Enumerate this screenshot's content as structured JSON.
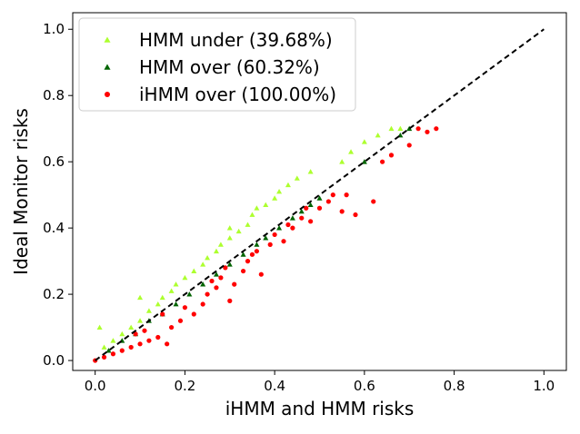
{
  "chart_data": {
    "type": "scatter",
    "xlabel": "iHMM and HMM risks",
    "ylabel": "Ideal Monitor risks",
    "xlim": [
      -0.05,
      1.05
    ],
    "ylim": [
      -0.03,
      1.05
    ],
    "xticks": [
      "0.0",
      "0.2",
      "0.4",
      "0.6",
      "0.8",
      "1.0"
    ],
    "yticks": [
      "0.0",
      "0.2",
      "0.4",
      "0.6",
      "0.8",
      "1.0"
    ],
    "legend_position": "top-left",
    "reference_line": {
      "style": "dashed",
      "color": "#000000",
      "from": [
        0,
        0
      ],
      "to": [
        1,
        1
      ]
    },
    "series": [
      {
        "name": "HMM under (39.68%)",
        "marker": "triangle",
        "color": "#adff2f",
        "points": [
          [
            0.01,
            0.1
          ],
          [
            0.02,
            0.04
          ],
          [
            0.04,
            0.06
          ],
          [
            0.06,
            0.08
          ],
          [
            0.08,
            0.1
          ],
          [
            0.1,
            0.19
          ],
          [
            0.1,
            0.12
          ],
          [
            0.12,
            0.15
          ],
          [
            0.14,
            0.17
          ],
          [
            0.15,
            0.19
          ],
          [
            0.17,
            0.21
          ],
          [
            0.18,
            0.23
          ],
          [
            0.2,
            0.25
          ],
          [
            0.22,
            0.27
          ],
          [
            0.24,
            0.29
          ],
          [
            0.25,
            0.31
          ],
          [
            0.27,
            0.33
          ],
          [
            0.28,
            0.35
          ],
          [
            0.3,
            0.37
          ],
          [
            0.3,
            0.4
          ],
          [
            0.32,
            0.39
          ],
          [
            0.34,
            0.41
          ],
          [
            0.35,
            0.44
          ],
          [
            0.36,
            0.46
          ],
          [
            0.38,
            0.47
          ],
          [
            0.4,
            0.49
          ],
          [
            0.41,
            0.51
          ],
          [
            0.43,
            0.53
          ],
          [
            0.45,
            0.55
          ],
          [
            0.48,
            0.57
          ],
          [
            0.55,
            0.6
          ],
          [
            0.57,
            0.63
          ],
          [
            0.6,
            0.66
          ],
          [
            0.63,
            0.68
          ],
          [
            0.66,
            0.7
          ],
          [
            0.68,
            0.7
          ]
        ]
      },
      {
        "name": "HMM over (60.32%)",
        "marker": "triangle",
        "color": "#006400",
        "points": [
          [
            0.03,
            0.03
          ],
          [
            0.06,
            0.06
          ],
          [
            0.09,
            0.08
          ],
          [
            0.12,
            0.12
          ],
          [
            0.15,
            0.14
          ],
          [
            0.18,
            0.17
          ],
          [
            0.21,
            0.2
          ],
          [
            0.24,
            0.23
          ],
          [
            0.27,
            0.26
          ],
          [
            0.3,
            0.29
          ],
          [
            0.33,
            0.32
          ],
          [
            0.36,
            0.35
          ],
          [
            0.38,
            0.37
          ],
          [
            0.41,
            0.4
          ],
          [
            0.44,
            0.43
          ],
          [
            0.46,
            0.45
          ],
          [
            0.48,
            0.47
          ],
          [
            0.5,
            0.49
          ],
          [
            0.6,
            0.6
          ],
          [
            0.68,
            0.68
          ],
          [
            0.7,
            0.7
          ]
        ]
      },
      {
        "name": "iHMM over (100.00%)",
        "marker": "circle",
        "color": "#ff0000",
        "points": [
          [
            0.0,
            0.0
          ],
          [
            0.02,
            0.01
          ],
          [
            0.04,
            0.02
          ],
          [
            0.06,
            0.03
          ],
          [
            0.08,
            0.04
          ],
          [
            0.1,
            0.05
          ],
          [
            0.12,
            0.06
          ],
          [
            0.14,
            0.07
          ],
          [
            0.16,
            0.05
          ],
          [
            0.17,
            0.1
          ],
          [
            0.19,
            0.12
          ],
          [
            0.2,
            0.16
          ],
          [
            0.22,
            0.14
          ],
          [
            0.24,
            0.17
          ],
          [
            0.25,
            0.2
          ],
          [
            0.27,
            0.22
          ],
          [
            0.28,
            0.25
          ],
          [
            0.3,
            0.18
          ],
          [
            0.31,
            0.23
          ],
          [
            0.33,
            0.27
          ],
          [
            0.34,
            0.3
          ],
          [
            0.36,
            0.33
          ],
          [
            0.37,
            0.26
          ],
          [
            0.39,
            0.35
          ],
          [
            0.4,
            0.38
          ],
          [
            0.42,
            0.36
          ],
          [
            0.44,
            0.4
          ],
          [
            0.46,
            0.43
          ],
          [
            0.48,
            0.42
          ],
          [
            0.5,
            0.46
          ],
          [
            0.52,
            0.48
          ],
          [
            0.55,
            0.45
          ],
          [
            0.58,
            0.44
          ],
          [
            0.62,
            0.48
          ],
          [
            0.64,
            0.6
          ],
          [
            0.66,
            0.62
          ],
          [
            0.7,
            0.65
          ],
          [
            0.72,
            0.7
          ],
          [
            0.74,
            0.69
          ],
          [
            0.76,
            0.7
          ],
          [
            0.26,
            0.24
          ],
          [
            0.29,
            0.28
          ],
          [
            0.35,
            0.32
          ],
          [
            0.43,
            0.41
          ],
          [
            0.47,
            0.46
          ],
          [
            0.53,
            0.5
          ],
          [
            0.56,
            0.5
          ],
          [
            0.15,
            0.14
          ],
          [
            0.09,
            0.08
          ],
          [
            0.11,
            0.09
          ]
        ]
      }
    ]
  }
}
